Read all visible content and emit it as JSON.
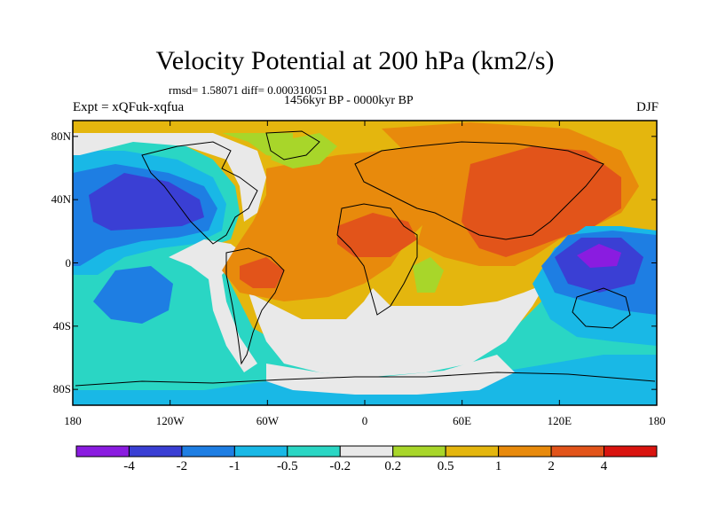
{
  "title": "Velocity Potential at 200 hPa (km2/s)",
  "stats": "rmsd= 1.58071 diff= 0.000310051",
  "period": "1456kyr BP - 0000kyr BP",
  "experiment": "Expt = xQFuk-xqfua",
  "season": "DJF",
  "map": {
    "lon_range": [
      -180,
      180
    ],
    "lat_range": [
      -90,
      90
    ],
    "lat_ticks": [
      {
        "value": 80,
        "label": "80N"
      },
      {
        "value": 40,
        "label": "40N"
      },
      {
        "value": 0,
        "label": "0"
      },
      {
        "value": -40,
        "label": "40S"
      },
      {
        "value": -80,
        "label": "80S"
      }
    ],
    "lon_ticks": [
      {
        "value": -180,
        "label": "180"
      },
      {
        "value": -120,
        "label": "120W"
      },
      {
        "value": -60,
        "label": "60W"
      },
      {
        "value": 0,
        "label": "0"
      },
      {
        "value": 60,
        "label": "60E"
      },
      {
        "value": 120,
        "label": "120E"
      },
      {
        "value": 180,
        "label": "180"
      }
    ]
  },
  "colorbar": {
    "colors": [
      "#8a1ce0",
      "#3a3fd4",
      "#1e7ee3",
      "#19b8e6",
      "#2ad6c4",
      "#e9e9e9",
      "#a8d62a",
      "#e4b60e",
      "#e88a0c",
      "#e2541a",
      "#d9140f"
    ],
    "labels": [
      "-4",
      "-2",
      "-1",
      "-0.5",
      "-0.2",
      "0.2",
      "0.5",
      "1",
      "2",
      "4"
    ]
  },
  "colors": {
    "violet": "#8a1ce0",
    "blue_dark": "#3a3fd4",
    "blue": "#1e7ee3",
    "cyan": "#19b8e6",
    "teal": "#2ad6c4",
    "neutral": "#e9e9e9",
    "lime": "#a8d62a",
    "yellow": "#e4b60e",
    "orange": "#e88a0c",
    "orange_red": "#e2541a",
    "red": "#d9140f"
  }
}
